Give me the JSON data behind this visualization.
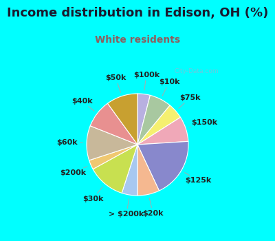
{
  "title": "Income distribution in Edison, OH (%)",
  "subtitle": "White residents",
  "title_color": "#1a1a2e",
  "subtitle_color": "#8b6060",
  "bg_outer": "#00ffff",
  "bg_inner_color": "#e8f5ee",
  "labels": [
    "$100k",
    "$10k",
    "$75k",
    "$150k",
    "$125k",
    "$20k",
    "> $200k",
    "$30k",
    "$200k",
    "$60k",
    "$40k",
    "$50k"
  ],
  "values": [
    4,
    7,
    5,
    8,
    19,
    7,
    5,
    12,
    3,
    11,
    9,
    10
  ],
  "colors": [
    "#b8b0e0",
    "#a8c8a0",
    "#f5f070",
    "#f0a8b8",
    "#8888cc",
    "#f5b890",
    "#a8c8f0",
    "#c8e050",
    "#f0c870",
    "#c8b89a",
    "#e89090",
    "#c8a030"
  ],
  "watermark": "City-Data.com",
  "label_fontsize": 8,
  "title_fontsize": 13,
  "subtitle_fontsize": 10
}
